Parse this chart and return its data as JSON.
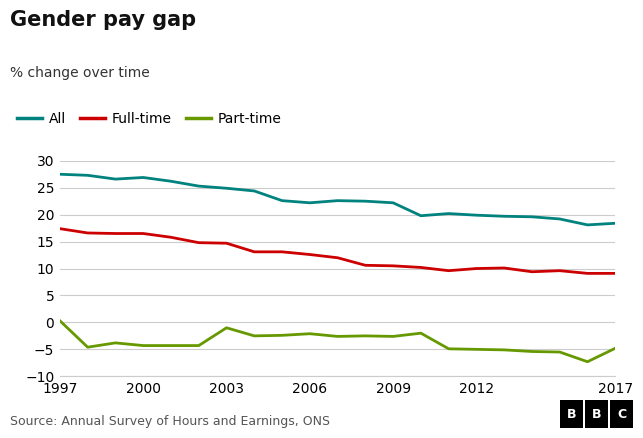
{
  "title": "Gender pay gap",
  "subtitle": "% change over time",
  "source": "Source: Annual Survey of Hours and Earnings, ONS",
  "years": [
    1997,
    1998,
    1999,
    2000,
    2001,
    2002,
    2003,
    2004,
    2005,
    2006,
    2007,
    2008,
    2009,
    2010,
    2011,
    2012,
    2013,
    2014,
    2015,
    2016,
    2017
  ],
  "all": [
    27.5,
    27.3,
    26.6,
    26.9,
    26.2,
    25.3,
    24.9,
    24.4,
    22.6,
    22.2,
    22.6,
    22.5,
    22.2,
    19.8,
    20.2,
    19.9,
    19.7,
    19.6,
    19.2,
    18.1,
    18.4
  ],
  "fulltime": [
    17.4,
    16.6,
    16.5,
    16.5,
    15.8,
    14.8,
    14.7,
    13.1,
    13.1,
    12.6,
    12.0,
    10.6,
    10.5,
    10.2,
    9.6,
    10.0,
    10.1,
    9.4,
    9.6,
    9.1,
    9.1
  ],
  "parttime": [
    0.3,
    -4.6,
    -3.8,
    -4.3,
    -4.3,
    -4.3,
    -1.0,
    -2.5,
    -2.4,
    -2.1,
    -2.6,
    -2.5,
    -2.6,
    -2.0,
    -4.9,
    -5.0,
    -5.1,
    -5.4,
    -5.5,
    -7.3,
    -4.8
  ],
  "color_all": "#00827F",
  "color_fulltime": "#CC0000",
  "color_parttime": "#669900",
  "line_width": 2.0,
  "ylim": [
    -10,
    30
  ],
  "yticks": [
    -10,
    -5,
    0,
    5,
    10,
    15,
    20,
    25,
    30
  ],
  "xticks": [
    1997,
    2000,
    2003,
    2006,
    2009,
    2012,
    2017
  ],
  "bg_color": "#ffffff",
  "grid_color": "#cccccc",
  "title_fontsize": 15,
  "subtitle_fontsize": 10,
  "legend_fontsize": 10,
  "tick_fontsize": 10,
  "source_fontsize": 9
}
